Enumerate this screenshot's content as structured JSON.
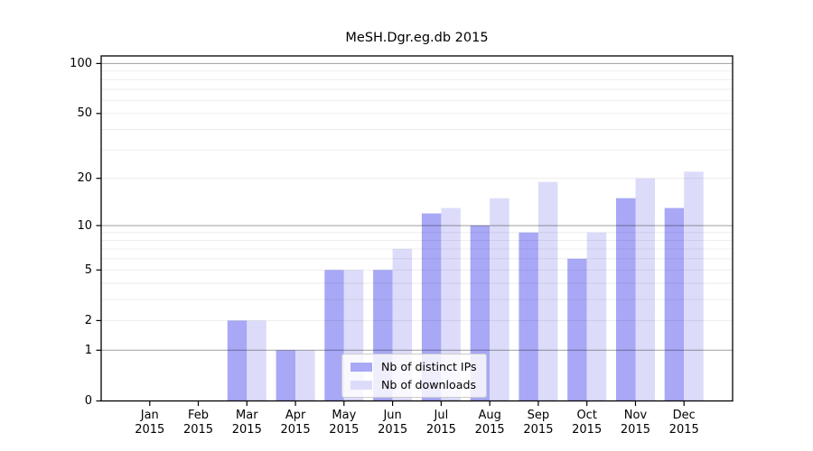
{
  "chart_data": {
    "type": "bar",
    "title": "MeSH.Dgr.eg.db 2015",
    "categories": [
      "Jan 2015",
      "Feb 2015",
      "Mar 2015",
      "Apr 2015",
      "May 2015",
      "Jun 2015",
      "Jul 2015",
      "Aug 2015",
      "Sep 2015",
      "Oct 2015",
      "Nov 2015",
      "Dec 2015"
    ],
    "series": [
      {
        "name": "Nb of distinct IPs",
        "color": "#a8a8f6",
        "values": [
          0,
          0,
          2,
          1,
          5,
          5,
          12,
          10,
          9,
          6,
          15,
          13
        ]
      },
      {
        "name": "Nb of downloads",
        "color": "#dcdcfa",
        "values": [
          0,
          0,
          2,
          1,
          5,
          7,
          13,
          15,
          19,
          9,
          20,
          22
        ]
      }
    ],
    "xlabel": "",
    "ylabel": "",
    "yscale": "log1p",
    "ylim": [
      0,
      111
    ],
    "ytick_values": [
      0,
      1,
      2,
      5,
      10,
      20,
      50,
      100
    ],
    "ytick_labels": [
      "0",
      "1",
      "2",
      "5",
      "10",
      "20",
      "50",
      "100"
    ],
    "major_gridlines": [
      1,
      10,
      100
    ],
    "minor_gridlines": [
      2,
      3,
      4,
      5,
      6,
      7,
      8,
      9,
      20,
      30,
      40,
      50,
      60,
      70,
      80,
      90
    ],
    "grid": "horizontal",
    "legend_position": "lower center"
  },
  "colors": {
    "background": "#ffffff",
    "frame": "#000000",
    "major_grid": "rgba(0,0,0,0.38)",
    "minor_grid": "rgba(0,0,0,0.08)",
    "tick": "#000000"
  }
}
